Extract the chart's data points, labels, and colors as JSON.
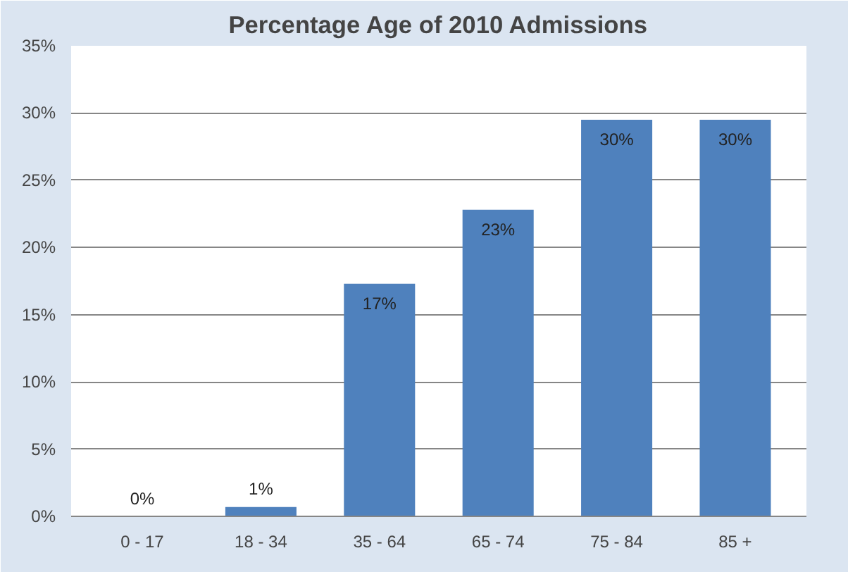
{
  "chart_data": {
    "type": "bar",
    "title": "Percentage Age of 2010 Admissions",
    "categories": [
      "0 - 17",
      "18 - 34",
      "35 - 64",
      "65 - 74",
      "75 - 84",
      "85 +"
    ],
    "values": [
      0,
      0.7,
      17.3,
      22.8,
      29.5,
      29.5
    ],
    "value_labels": [
      "0%",
      "1%",
      "17%",
      "23%",
      "30%",
      "30%"
    ],
    "color": "#4f81bd",
    "ylim": [
      0,
      35
    ],
    "yticks": [
      {
        "value": 0,
        "label": "0%"
      },
      {
        "value": 5,
        "label": "5%"
      },
      {
        "value": 10,
        "label": "10%"
      },
      {
        "value": 15,
        "label": "15%"
      },
      {
        "value": 20,
        "label": "20%"
      },
      {
        "value": 25,
        "label": "25%"
      },
      {
        "value": 30,
        "label": "30%"
      },
      {
        "value": 35,
        "label": "35%"
      }
    ],
    "grid": "y"
  }
}
